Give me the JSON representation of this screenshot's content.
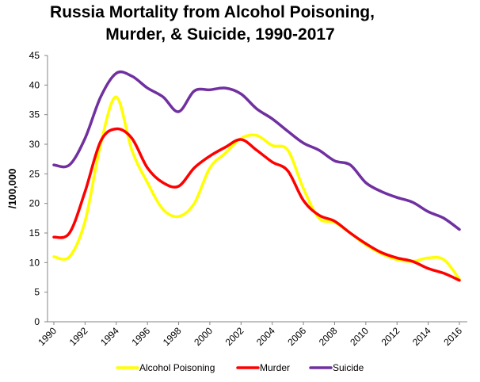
{
  "chart_data": {
    "type": "line",
    "title_lines": [
      "Russia Mortality from Alcohol Poisoning,",
      "Murder, & Suicide, 1990-2017"
    ],
    "xlabel": "",
    "ylabel": "/100,000",
    "ylim": [
      0,
      45
    ],
    "y_ticks": [
      0,
      5,
      10,
      15,
      20,
      25,
      30,
      35,
      40,
      45
    ],
    "x_tick_labels": [
      "1990",
      "1992",
      "1994",
      "1996",
      "1998",
      "2000",
      "2002",
      "2004",
      "2006",
      "2008",
      "2010",
      "2012",
      "2014",
      "2016"
    ],
    "grid": false,
    "legend_position": "bottom",
    "x": [
      1990,
      1991,
      1992,
      1993,
      1994,
      1995,
      1996,
      1997,
      1998,
      1999,
      2000,
      2001,
      2002,
      2003,
      2004,
      2005,
      2006,
      2007,
      2008,
      2009,
      2010,
      2011,
      2012,
      2013,
      2014,
      2015,
      2016
    ],
    "series": [
      {
        "name": "Alcohol Poisoning",
        "color": "#ffff00",
        "values": [
          11.0,
          11.0,
          17.0,
          30.0,
          38.0,
          29.0,
          23.5,
          19.0,
          17.8,
          20.0,
          26.0,
          28.5,
          31.0,
          31.5,
          29.8,
          29.0,
          22.5,
          17.5,
          16.8,
          15.0,
          13.0,
          11.5,
          10.5,
          10.2,
          10.8,
          10.5,
          7.2
        ]
      },
      {
        "name": "Murder",
        "color": "#ff0000",
        "values": [
          14.3,
          15.0,
          22.0,
          30.5,
          32.6,
          31.0,
          26.0,
          23.5,
          22.9,
          26.0,
          28.0,
          29.5,
          30.8,
          29.0,
          27.0,
          25.5,
          20.5,
          18.0,
          17.0,
          15.0,
          13.2,
          11.7,
          10.8,
          10.2,
          9.0,
          8.2,
          7.0
        ]
      },
      {
        "name": "Suicide",
        "color": "#7030a0",
        "values": [
          26.5,
          26.5,
          31.0,
          38.0,
          42.0,
          41.5,
          39.5,
          38.0,
          35.5,
          39.0,
          39.2,
          39.5,
          38.5,
          36.0,
          34.3,
          32.2,
          30.2,
          29.0,
          27.2,
          26.5,
          23.5,
          22.0,
          21.0,
          20.2,
          18.6,
          17.5,
          15.6
        ]
      }
    ]
  }
}
